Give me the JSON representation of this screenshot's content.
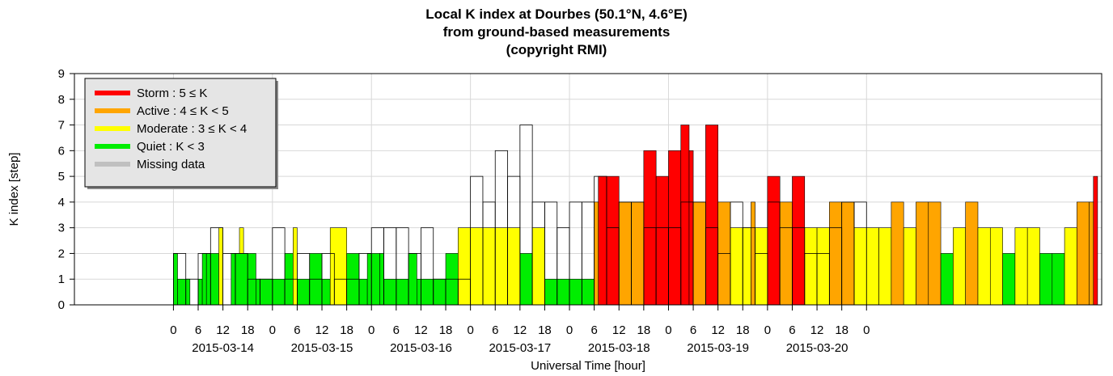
{
  "chart_data": {
    "type": "bar",
    "title_lines": [
      "Local K index at Dourbes (50.1°N, 4.6°E)",
      "from ground-based measurements",
      "(copyright RMI)"
    ],
    "ylabel": "K index [step]",
    "xlabel": "Universal Time [hour]",
    "ylim": [
      0,
      9
    ],
    "yticks": [
      "0",
      "1",
      "2",
      "3",
      "4",
      "5",
      "6",
      "7",
      "8",
      "9"
    ],
    "x_hour_ticks": [
      "0",
      "6",
      "12",
      "18",
      "0",
      "6",
      "12",
      "18",
      "0",
      "6",
      "12",
      "18",
      "0",
      "6",
      "12",
      "18",
      "0",
      "6",
      "12",
      "18",
      "0",
      "6",
      "12",
      "18",
      "0",
      "6",
      "12",
      "18",
      "0"
    ],
    "dates": [
      "2015-03-14",
      "2015-03-15",
      "2015-03-16",
      "2015-03-17",
      "2015-03-18",
      "2015-03-19",
      "2015-03-20"
    ],
    "legend": [
      {
        "label": "Storm : 5 ≤ K",
        "color": "#ff0000"
      },
      {
        "label": "Active : 4 ≤ K < 5",
        "color": "#ffa500"
      },
      {
        "label": "Moderate : 3 ≤ K < 4",
        "color": "#ffff00"
      },
      {
        "label": "Quiet : K < 3",
        "color": "#00ee00"
      },
      {
        "label": "Missing data",
        "color": "#c0c0c0"
      }
    ],
    "legend_placement": "top-left",
    "grid": true,
    "three_hour_k": [
      2,
      1,
      2,
      3,
      2,
      2,
      1,
      1,
      3,
      1,
      2,
      1,
      2,
      1,
      1,
      2,
      3,
      3,
      3,
      2,
      3,
      1,
      1,
      1,
      5,
      4,
      6,
      5,
      7,
      4,
      4,
      3,
      4,
      4,
      5,
      3,
      4,
      4,
      3,
      3,
      3,
      4,
      4,
      3,
      2,
      4,
      3,
      2,
      4,
      3,
      3,
      2,
      2,
      3,
      4,
      4
    ],
    "sub_hour_bars": [
      {
        "start_h": 0,
        "end_h": 1,
        "k": 2
      },
      {
        "start_h": 1,
        "end_h": 4,
        "k": 1
      },
      {
        "start_h": 6,
        "end_h": 7,
        "k": 1
      },
      {
        "start_h": 7,
        "end_h": 8,
        "k": 2
      },
      {
        "start_h": 8,
        "end_h": 11,
        "k": 2
      },
      {
        "start_h": 11,
        "end_h": 12,
        "k": 3
      },
      {
        "start_h": 14,
        "end_h": 15,
        "k": 2
      },
      {
        "start_h": 16,
        "end_h": 17,
        "k": 3
      },
      {
        "start_h": 15,
        "end_h": 18,
        "k": 2
      },
      {
        "start_h": 18,
        "end_h": 20,
        "k": 2
      },
      {
        "start_h": 20,
        "end_h": 24,
        "k": 1
      },
      {
        "start_h": 24,
        "end_h": 27,
        "k": 1
      },
      {
        "start_h": 27,
        "end_h": 29,
        "k": 2
      },
      {
        "start_h": 29,
        "end_h": 30,
        "k": 3
      },
      {
        "start_h": 30,
        "end_h": 33,
        "k": 1
      },
      {
        "start_h": 33,
        "end_h": 36,
        "k": 2
      },
      {
        "start_h": 36,
        "end_h": 38,
        "k": 1
      },
      {
        "start_h": 38,
        "end_h": 42,
        "k": 3
      },
      {
        "start_h": 42,
        "end_h": 45,
        "k": 2
      },
      {
        "start_h": 45,
        "end_h": 47,
        "k": 1
      },
      {
        "start_h": 47,
        "end_h": 50,
        "k": 2
      },
      {
        "start_h": 50,
        "end_h": 51,
        "k": 2
      },
      {
        "start_h": 51,
        "end_h": 54,
        "k": 1
      },
      {
        "start_h": 54,
        "end_h": 57,
        "k": 1
      },
      {
        "start_h": 57,
        "end_h": 59,
        "k": 2
      },
      {
        "start_h": 59,
        "end_h": 63,
        "k": 1
      },
      {
        "start_h": 63,
        "end_h": 66,
        "k": 1
      },
      {
        "start_h": 66,
        "end_h": 69,
        "k": 2
      },
      {
        "start_h": 69,
        "end_h": 72,
        "k": 3
      },
      {
        "start_h": 72,
        "end_h": 75,
        "k": 3
      },
      {
        "start_h": 75,
        "end_h": 78,
        "k": 3
      },
      {
        "start_h": 78,
        "end_h": 81,
        "k": 3
      },
      {
        "start_h": 81,
        "end_h": 84,
        "k": 3
      },
      {
        "start_h": 84,
        "end_h": 87,
        "k": 2
      },
      {
        "start_h": 87,
        "end_h": 90,
        "k": 3
      },
      {
        "start_h": 90,
        "end_h": 93,
        "k": 1
      },
      {
        "start_h": 93,
        "end_h": 96,
        "k": 1
      },
      {
        "start_h": 96,
        "end_h": 99,
        "k": 1
      },
      {
        "start_h": 99,
        "end_h": 102,
        "k": 1
      },
      {
        "start_h": 102,
        "end_h": 103,
        "k": 4
      },
      {
        "start_h": 103,
        "end_h": 105,
        "k": 5
      },
      {
        "start_h": 105,
        "end_h": 108,
        "k": 5
      },
      {
        "start_h": 108,
        "end_h": 111,
        "k": 4
      },
      {
        "start_h": 111,
        "end_h": 114,
        "k": 4
      },
      {
        "start_h": 114,
        "end_h": 117,
        "k": 6
      },
      {
        "start_h": 117,
        "end_h": 120,
        "k": 5
      },
      {
        "start_h": 120,
        "end_h": 123,
        "k": 6
      },
      {
        "start_h": 123,
        "end_h": 125,
        "k": 7
      },
      {
        "start_h": 125,
        "end_h": 126,
        "k": 6
      },
      {
        "start_h": 126,
        "end_h": 129,
        "k": 4
      },
      {
        "start_h": 129,
        "end_h": 132,
        "k": 7
      },
      {
        "start_h": 132,
        "end_h": 135,
        "k": 4
      },
      {
        "start_h": 135,
        "end_h": 138,
        "k": 3
      },
      {
        "start_h": 138,
        "end_h": 140,
        "k": 3
      },
      {
        "start_h": 140,
        "end_h": 141,
        "k": 4
      },
      {
        "start_h": 141,
        "end_h": 144,
        "k": 3
      },
      {
        "start_h": 144,
        "end_h": 147,
        "k": 5
      },
      {
        "start_h": 147,
        "end_h": 150,
        "k": 4
      },
      {
        "start_h": 150,
        "end_h": 153,
        "k": 5
      },
      {
        "start_h": 153,
        "end_h": 156,
        "k": 3
      },
      {
        "start_h": 156,
        "end_h": 159,
        "k": 3
      },
      {
        "start_h": 159,
        "end_h": 162,
        "k": 4
      },
      {
        "start_h": 162,
        "end_h": 165,
        "k": 4
      },
      {
        "start_h": 165,
        "end_h": 168,
        "k": 3
      },
      {
        "start_h": 168,
        "end_h": 171,
        "k": 3
      },
      {
        "start_h": 171,
        "end_h": 174,
        "k": 3
      },
      {
        "start_h": 174,
        "end_h": 177,
        "k": 4
      },
      {
        "start_h": 177,
        "end_h": 180,
        "k": 3
      },
      {
        "start_h": 180,
        "end_h": 183,
        "k": 4
      },
      {
        "start_h": 183,
        "end_h": 186,
        "k": 4
      },
      {
        "start_h": 186,
        "end_h": 189,
        "k": 2
      },
      {
        "start_h": 189,
        "end_h": 192,
        "k": 3
      },
      {
        "start_h": 192,
        "end_h": 195,
        "k": 4
      },
      {
        "start_h": 195,
        "end_h": 198,
        "k": 3
      },
      {
        "start_h": 198,
        "end_h": 201,
        "k": 3
      },
      {
        "start_h": 201,
        "end_h": 204,
        "k": 2
      },
      {
        "start_h": 204,
        "end_h": 207,
        "k": 3
      },
      {
        "start_h": 207,
        "end_h": 210,
        "k": 3
      },
      {
        "start_h": 210,
        "end_h": 213,
        "k": 2
      },
      {
        "start_h": 213,
        "end_h": 216,
        "k": 2
      },
      {
        "start_h": 216,
        "end_h": 219,
        "k": 3
      },
      {
        "start_h": 219,
        "end_h": 222,
        "k": 4
      },
      {
        "start_h": 222,
        "end_h": 223,
        "k": 4
      },
      {
        "start_h": 223,
        "end_h": 224,
        "k": 5
      }
    ]
  }
}
